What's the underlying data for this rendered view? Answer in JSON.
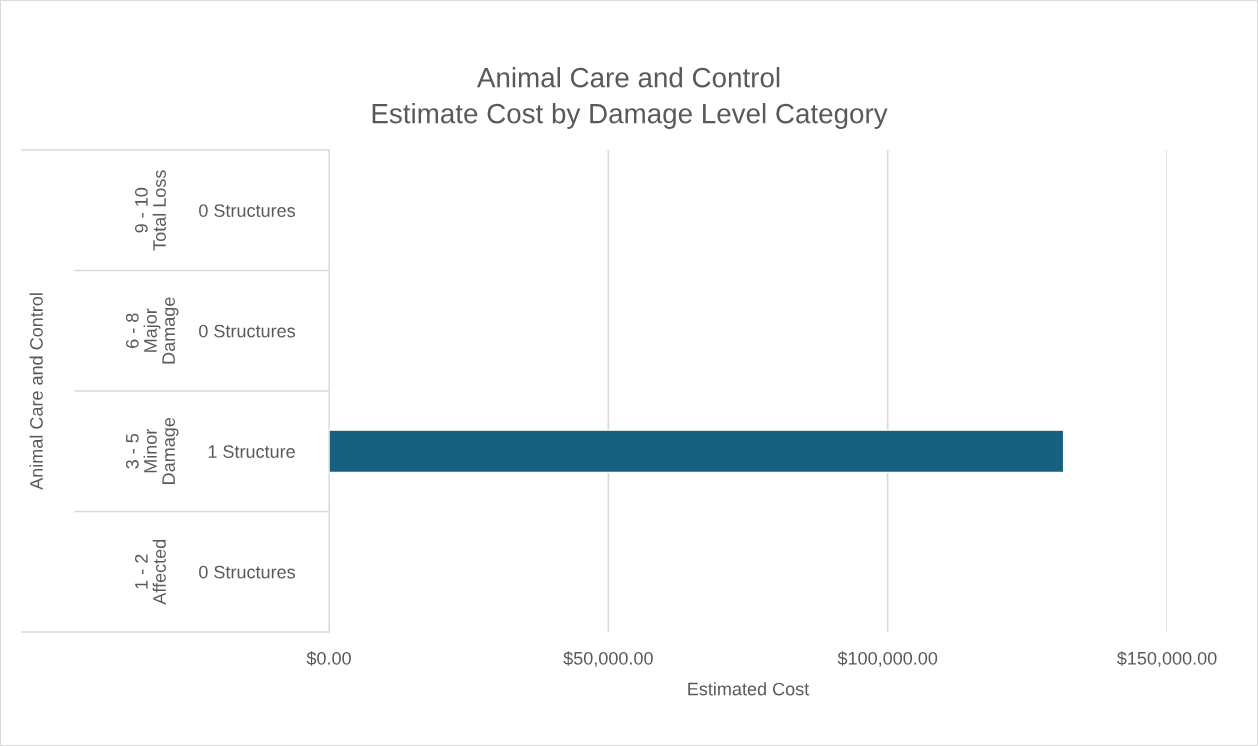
{
  "chart_data": {
    "type": "bar",
    "orientation": "horizontal",
    "title": "Animal Care and Control\nEstimate Cost by Damage Level Category",
    "xlabel": "Estimated Cost",
    "categories": [
      "0 Structures",
      "0 Structures",
      "1 Structure",
      "0 Structures"
    ],
    "annotations": [
      "Animal Care and Control",
      "9 - 10\nTotal Loss",
      "6 - 8\nMajor\nDamage",
      "3 - 5\nMinor\nDamage",
      "1 - 2\nAffected"
    ],
    "values": [
      0,
      0,
      131500,
      0
    ],
    "color": "#17607f",
    "xlim": [
      0,
      150000
    ],
    "xticks": [
      {
        "value": 0,
        "label": "$0.00"
      },
      {
        "value": 50000,
        "label": "$50,000.00"
      },
      {
        "value": 100000,
        "label": "$100,000.00"
      },
      {
        "value": 150000,
        "label": "$150,000.00"
      }
    ],
    "grid": "x"
  }
}
